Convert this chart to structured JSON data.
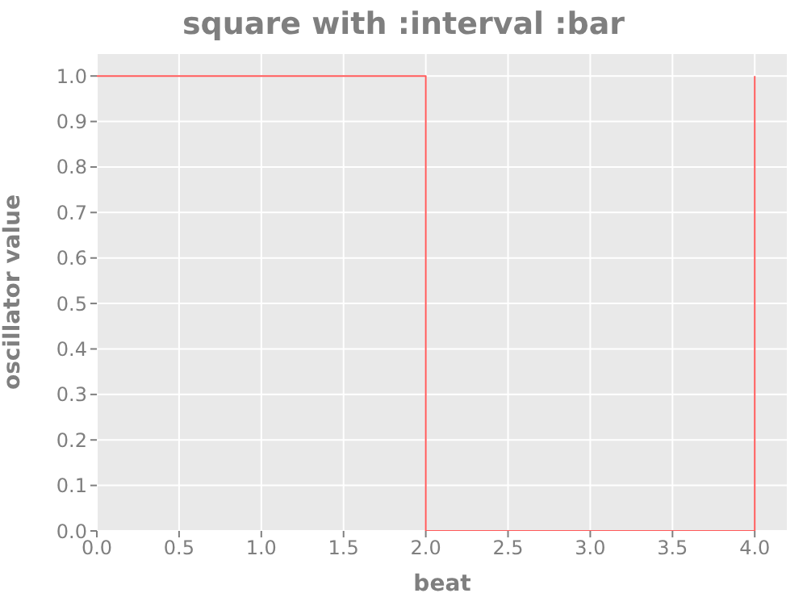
{
  "chart_data": {
    "type": "step",
    "title": "square with :interval :bar",
    "xlabel": "beat",
    "ylabel": "oscillator value",
    "x": [
      0,
      2,
      4
    ],
    "series": [
      {
        "color": "#ff5a5a",
        "values": [
          1,
          0,
          1
        ]
      }
    ],
    "xlim": [
      0,
      4.2
    ],
    "xticks": [
      {
        "value": 0,
        "label": "0.0"
      },
      0.5,
      {
        "value": 1,
        "label": "1.0"
      },
      1.5,
      {
        "value": 2,
        "label": "2.0"
      },
      2.5,
      {
        "value": 3,
        "label": "3.0"
      },
      3.5,
      {
        "value": 4,
        "label": "4.0"
      }
    ],
    "ylim": [
      0,
      1.05
    ],
    "yticks": [
      {
        "value": 0,
        "label": "0.0"
      },
      0.1,
      0.2,
      0.3,
      0.4,
      0.5,
      0.6,
      0.7,
      0.8,
      0.9,
      {
        "value": 1,
        "label": "1.0"
      }
    ],
    "grid": true,
    "legend": false,
    "marker": "none",
    "line_style": "solid"
  }
}
